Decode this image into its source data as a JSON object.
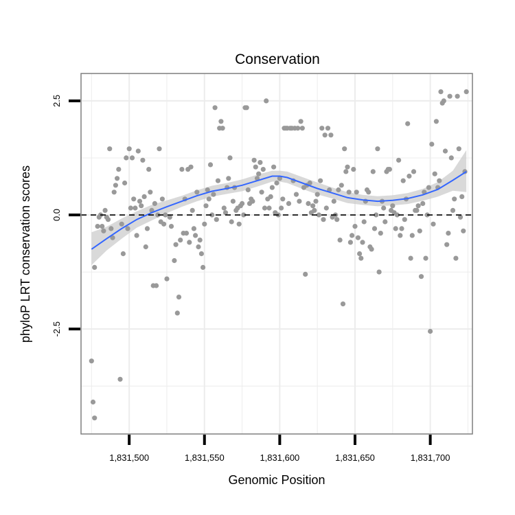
{
  "chart_data": {
    "type": "scatter",
    "title": "Conservation",
    "xlabel": "Genomic Position",
    "ylabel": "phyloP LRT conservation scores",
    "xlim": [
      1831468,
      1831728
    ],
    "ylim": [
      -4.8,
      3.1
    ],
    "x_ticks": [
      {
        "value": 1831500,
        "label": "1,831,500"
      },
      {
        "value": 1831550,
        "label": "1,831,550"
      },
      {
        "value": 1831600,
        "label": "1,831,600"
      },
      {
        "value": 1831650,
        "label": "1,831,650"
      },
      {
        "value": 1831700,
        "label": "1,831,700"
      }
    ],
    "y_ticks": [
      {
        "value": 2.5,
        "label": "2.5"
      },
      {
        "value": 0,
        "label": "0.0"
      },
      {
        "value": -2.5,
        "label": "-2.5"
      }
    ],
    "x_minor_gridlines": [
      1831475,
      1831525,
      1831575,
      1831625,
      1831675,
      1831725
    ],
    "y_minor_gridlines": [
      1.25,
      -1.25,
      -3.75
    ],
    "reference_line": {
      "y": 0,
      "style": "dashed",
      "color": "#000000"
    },
    "grid": true,
    "colors": {
      "points": "#999999",
      "smooth": "#3366ff",
      "band": "#cccccc",
      "grid": "#ececec",
      "frame": "#7f7f7f"
    },
    "points": [
      [
        1831475,
        -3.2
      ],
      [
        1831476,
        -4.1
      ],
      [
        1831477,
        -4.45
      ],
      [
        1831477,
        -1.15
      ],
      [
        1831479,
        -0.25
      ],
      [
        1831480,
        -0.05
      ],
      [
        1831481,
        0.0
      ],
      [
        1831482,
        -0.25
      ],
      [
        1831483,
        -0.35
      ],
      [
        1831484,
        0.1
      ],
      [
        1831485,
        -0.05
      ],
      [
        1831486,
        -0.1
      ],
      [
        1831487,
        1.45
      ],
      [
        1831488,
        -0.3
      ],
      [
        1831489,
        -0.5
      ],
      [
        1831490,
        0.5
      ],
      [
        1831491,
        0.65
      ],
      [
        1831492,
        0.8
      ],
      [
        1831493,
        1.0
      ],
      [
        1831494,
        -3.6
      ],
      [
        1831495,
        -0.2
      ],
      [
        1831496,
        -0.85
      ],
      [
        1831497,
        0.7
      ],
      [
        1831498,
        1.25
      ],
      [
        1831499,
        -0.3
      ],
      [
        1831500,
        1.45
      ],
      [
        1831501,
        0.15
      ],
      [
        1831502,
        1.25
      ],
      [
        1831503,
        0.35
      ],
      [
        1831504,
        0.15
      ],
      [
        1831505,
        -0.45
      ],
      [
        1831506,
        1.4
      ],
      [
        1831507,
        0.3
      ],
      [
        1831508,
        0.2
      ],
      [
        1831509,
        1.2
      ],
      [
        1831510,
        0.4
      ],
      [
        1831511,
        -0.7
      ],
      [
        1831512,
        -0.3
      ],
      [
        1831513,
        1.0
      ],
      [
        1831514,
        0.5
      ],
      [
        1831515,
        0.1
      ],
      [
        1831516,
        -1.55
      ],
      [
        1831517,
        0.25
      ],
      [
        1831518,
        -1.55
      ],
      [
        1831519,
        0.0
      ],
      [
        1831520,
        1.45
      ],
      [
        1831521,
        -0.15
      ],
      [
        1831522,
        0.35
      ],
      [
        1831523,
        -0.2
      ],
      [
        1831524,
        0.0
      ],
      [
        1831525,
        -1.4
      ],
      [
        1831527,
        -0.05
      ],
      [
        1831528,
        -0.25
      ],
      [
        1831530,
        -1.0
      ],
      [
        1831531,
        -0.65
      ],
      [
        1831532,
        -2.15
      ],
      [
        1831533,
        -1.8
      ],
      [
        1831534,
        -0.55
      ],
      [
        1831535,
        1.0
      ],
      [
        1831536,
        -0.4
      ],
      [
        1831537,
        0.35
      ],
      [
        1831538,
        -0.4
      ],
      [
        1831539,
        1.0
      ],
      [
        1831540,
        -0.6
      ],
      [
        1831541,
        1.05
      ],
      [
        1831542,
        0.1
      ],
      [
        1831543,
        -0.3
      ],
      [
        1831544,
        -0.45
      ],
      [
        1831545,
        0.5
      ],
      [
        1831546,
        -0.7
      ],
      [
        1831547,
        -0.55
      ],
      [
        1831548,
        -0.85
      ],
      [
        1831549,
        -1.15
      ],
      [
        1831550,
        -0.2
      ],
      [
        1831551,
        0.2
      ],
      [
        1831552,
        0.55
      ],
      [
        1831553,
        0.35
      ],
      [
        1831554,
        1.1
      ],
      [
        1831555,
        0.0
      ],
      [
        1831556,
        0.45
      ],
      [
        1831557,
        2.35
      ],
      [
        1831558,
        -0.1
      ],
      [
        1831559,
        0.75
      ],
      [
        1831560,
        1.9
      ],
      [
        1831561,
        2.05
      ],
      [
        1831562,
        1.9
      ],
      [
        1831563,
        0.15
      ],
      [
        1831564,
        0.05
      ],
      [
        1831565,
        0.6
      ],
      [
        1831566,
        0.8
      ],
      [
        1831567,
        1.25
      ],
      [
        1831568,
        -0.15
      ],
      [
        1831569,
        0.3
      ],
      [
        1831570,
        0.6
      ],
      [
        1831571,
        0.1
      ],
      [
        1831572,
        0.15
      ],
      [
        1831573,
        -0.2
      ],
      [
        1831574,
        0.2
      ],
      [
        1831575,
        0.25
      ],
      [
        1831576,
        0.0
      ],
      [
        1831577,
        2.35
      ],
      [
        1831578,
        2.35
      ],
      [
        1831579,
        0.55
      ],
      [
        1831580,
        0.25
      ],
      [
        1831581,
        0.35
      ],
      [
        1831582,
        0.3
      ],
      [
        1831583,
        1.2
      ],
      [
        1831584,
        1.05
      ],
      [
        1831585,
        0.8
      ],
      [
        1831586,
        0.9
      ],
      [
        1831587,
        1.15
      ],
      [
        1831588,
        0.5
      ],
      [
        1831589,
        1.0
      ],
      [
        1831590,
        0.15
      ],
      [
        1831591,
        2.5
      ],
      [
        1831592,
        0.35
      ],
      [
        1831593,
        0.15
      ],
      [
        1831594,
        0.4
      ],
      [
        1831595,
        0.6
      ],
      [
        1831596,
        1.05
      ],
      [
        1831597,
        0.05
      ],
      [
        1831598,
        0.7
      ],
      [
        1831599,
        0.0
      ],
      [
        1831600,
        0.8
      ],
      [
        1831601,
        0.15
      ],
      [
        1831602,
        0.35
      ],
      [
        1831603,
        1.9
      ],
      [
        1831604,
        1.9
      ],
      [
        1831605,
        1.9
      ],
      [
        1831606,
        0.25
      ],
      [
        1831607,
        1.9
      ],
      [
        1831608,
        1.9
      ],
      [
        1831609,
        0.75
      ],
      [
        1831610,
        1.9
      ],
      [
        1831611,
        0.45
      ],
      [
        1831612,
        1.9
      ],
      [
        1831613,
        0.3
      ],
      [
        1831614,
        2.05
      ],
      [
        1831615,
        1.9
      ],
      [
        1831616,
        0.6
      ],
      [
        1831617,
        -1.3
      ],
      [
        1831618,
        0.65
      ],
      [
        1831619,
        0.25
      ],
      [
        1831620,
        0.7
      ],
      [
        1831621,
        0.05
      ],
      [
        1831622,
        0.2
      ],
      [
        1831623,
        0.1
      ],
      [
        1831624,
        0.3
      ],
      [
        1831625,
        0.45
      ],
      [
        1831626,
        0.0
      ],
      [
        1831627,
        0.75
      ],
      [
        1831628,
        1.9
      ],
      [
        1831629,
        -0.1
      ],
      [
        1831630,
        1.75
      ],
      [
        1831631,
        0.15
      ],
      [
        1831632,
        1.9
      ],
      [
        1831633,
        0.55
      ],
      [
        1831634,
        1.75
      ],
      [
        1831635,
        -0.05
      ],
      [
        1831636,
        0.3
      ],
      [
        1831637,
        0.0
      ],
      [
        1831638,
        -0.1
      ],
      [
        1831639,
        0.55
      ],
      [
        1831640,
        -0.55
      ],
      [
        1831641,
        0.65
      ],
      [
        1831642,
        -1.95
      ],
      [
        1831643,
        1.45
      ],
      [
        1831644,
        0.95
      ],
      [
        1831645,
        1.05
      ],
      [
        1831646,
        0.5
      ],
      [
        1831647,
        -0.6
      ],
      [
        1831648,
        -0.45
      ],
      [
        1831649,
        1.0
      ],
      [
        1831650,
        -0.25
      ],
      [
        1831651,
        0.5
      ],
      [
        1831652,
        -0.5
      ],
      [
        1831653,
        -0.85
      ],
      [
        1831654,
        -0.95
      ],
      [
        1831655,
        -0.6
      ],
      [
        1831656,
        -0.15
      ],
      [
        1831657,
        0.3
      ],
      [
        1831658,
        0.55
      ],
      [
        1831659,
        0.5
      ],
      [
        1831660,
        -0.7
      ],
      [
        1831661,
        -0.75
      ],
      [
        1831662,
        0.95
      ],
      [
        1831663,
        -0.3
      ],
      [
        1831664,
        0.0
      ],
      [
        1831665,
        1.45
      ],
      [
        1831666,
        -1.25
      ],
      [
        1831667,
        -0.4
      ],
      [
        1831668,
        0.3
      ],
      [
        1831669,
        0.15
      ],
      [
        1831670,
        -0.15
      ],
      [
        1831671,
        0.95
      ],
      [
        1831672,
        1.0
      ],
      [
        1831673,
        1.0
      ],
      [
        1831674,
        0.1
      ],
      [
        1831675,
        0.2
      ],
      [
        1831676,
        0.05
      ],
      [
        1831677,
        -0.3
      ],
      [
        1831678,
        0.0
      ],
      [
        1831679,
        1.2
      ],
      [
        1831680,
        -0.45
      ],
      [
        1831681,
        -0.3
      ],
      [
        1831682,
        0.75
      ],
      [
        1831683,
        -0.1
      ],
      [
        1831684,
        0.35
      ],
      [
        1831685,
        2.0
      ],
      [
        1831686,
        0.85
      ],
      [
        1831687,
        -0.95
      ],
      [
        1831688,
        -0.45
      ],
      [
        1831689,
        0.95
      ],
      [
        1831690,
        0.1
      ],
      [
        1831691,
        0.1
      ],
      [
        1831692,
        0.2
      ],
      [
        1831693,
        -0.35
      ],
      [
        1831694,
        -1.35
      ],
      [
        1831695,
        0.25
      ],
      [
        1831696,
        0.5
      ],
      [
        1831697,
        -0.95
      ],
      [
        1831698,
        0.0
      ],
      [
        1831699,
        0.6
      ],
      [
        1831700,
        -2.55
      ],
      [
        1831701,
        1.55
      ],
      [
        1831702,
        -0.2
      ],
      [
        1831703,
        0.9
      ],
      [
        1831704,
        2.05
      ],
      [
        1831705,
        0.6
      ],
      [
        1831706,
        0.75
      ],
      [
        1831707,
        2.7
      ],
      [
        1831708,
        2.45
      ],
      [
        1831709,
        2.5
      ],
      [
        1831710,
        1.4
      ],
      [
        1831711,
        -0.65
      ],
      [
        1831712,
        -0.4
      ],
      [
        1831713,
        2.6
      ],
      [
        1831714,
        1.25
      ],
      [
        1831715,
        0.1
      ],
      [
        1831716,
        0.35
      ],
      [
        1831717,
        -0.95
      ],
      [
        1831718,
        2.6
      ],
      [
        1831719,
        1.45
      ],
      [
        1831720,
        -0.05
      ],
      [
        1831721,
        0.4
      ],
      [
        1831722,
        -0.35
      ],
      [
        1831723,
        0.95
      ],
      [
        1831724,
        2.7
      ]
    ],
    "smooth_line": {
      "method": "loess",
      "x": [
        1831475,
        1831485,
        1831495,
        1831505,
        1831515,
        1831525,
        1831535,
        1831545,
        1831555,
        1831565,
        1831575,
        1831585,
        1831595,
        1831600,
        1831605,
        1831615,
        1831625,
        1831635,
        1831645,
        1831655,
        1831665,
        1831675,
        1831685,
        1831695,
        1831705,
        1831715,
        1831724
      ],
      "y": [
        -0.75,
        -0.52,
        -0.3,
        -0.1,
        0.05,
        0.18,
        0.3,
        0.42,
        0.52,
        0.58,
        0.65,
        0.75,
        0.85,
        0.85,
        0.82,
        0.7,
        0.58,
        0.48,
        0.38,
        0.33,
        0.3,
        0.32,
        0.36,
        0.44,
        0.56,
        0.76,
        0.95
      ],
      "band_upper": [
        -0.38,
        -0.26,
        -0.08,
        0.08,
        0.22,
        0.32,
        0.42,
        0.54,
        0.64,
        0.7,
        0.78,
        0.88,
        0.97,
        0.97,
        0.95,
        0.83,
        0.71,
        0.6,
        0.5,
        0.44,
        0.41,
        0.43,
        0.48,
        0.57,
        0.72,
        0.97,
        1.42
      ],
      "band_lower": [
        -1.1,
        -0.78,
        -0.52,
        -0.28,
        -0.12,
        0.04,
        0.18,
        0.3,
        0.4,
        0.46,
        0.52,
        0.62,
        0.73,
        0.73,
        0.7,
        0.57,
        0.45,
        0.36,
        0.26,
        0.22,
        0.19,
        0.21,
        0.24,
        0.31,
        0.4,
        0.53,
        0.5
      ]
    }
  }
}
